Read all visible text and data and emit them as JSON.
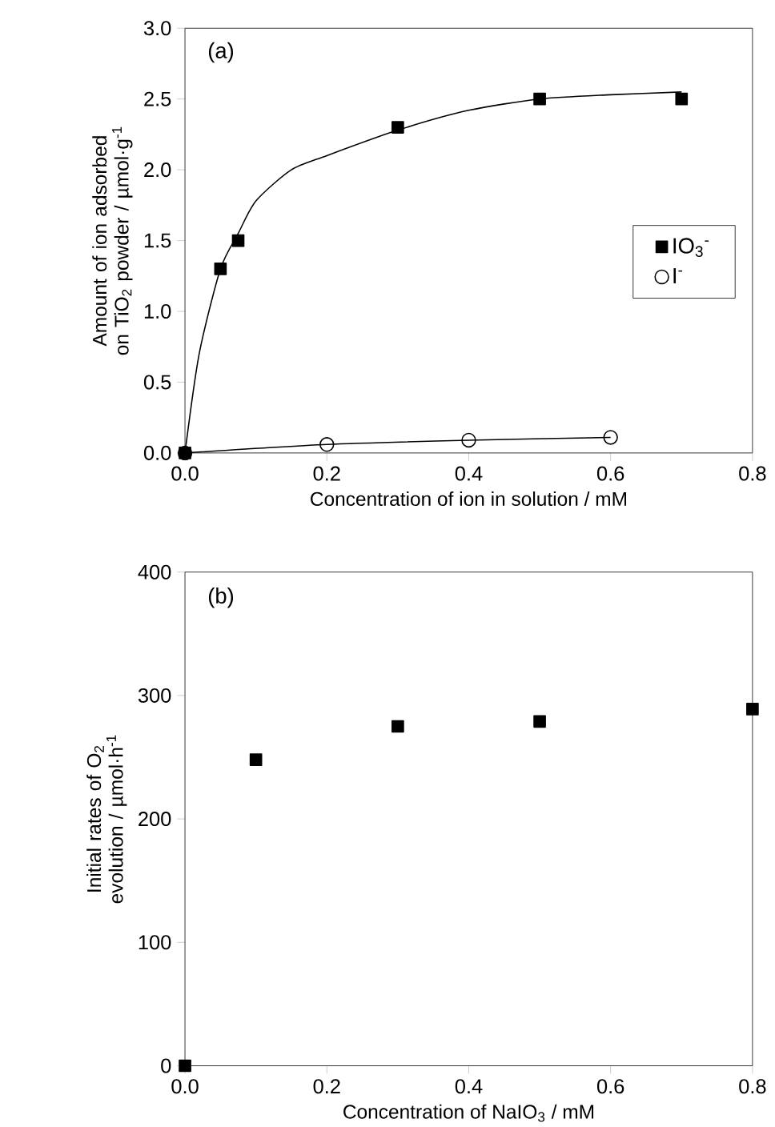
{
  "chart_data": [
    {
      "type": "scatter",
      "xlabel": "Concentration of ion in solution / mM",
      "ylabel": "Amount of ion adsorbed on TiO$_{2}$ powder / µmol·g$^{-1}$",
      "annotations": [
        "(a)"
      ],
      "xlim": [
        0,
        0.8
      ],
      "ylim": [
        0,
        3
      ],
      "xticks": [
        {
          "value": 0,
          "label": "0.0"
        },
        {
          "value": 0.2,
          "label": "0.2"
        },
        {
          "value": 0.4,
          "label": "0.4"
        },
        {
          "value": 0.6,
          "label": "0.6"
        },
        {
          "value": 0.8,
          "label": "0.8"
        }
      ],
      "yticks": [
        {
          "value": 0,
          "label": "0.0"
        },
        {
          "value": 0.5,
          "label": "0.5"
        },
        {
          "value": 1,
          "label": "1.0"
        },
        {
          "value": 1.5,
          "label": "1.5"
        },
        {
          "value": 2,
          "label": "2.0"
        },
        {
          "value": 2.5,
          "label": "2.5"
        },
        {
          "value": 3,
          "label": "3.0"
        }
      ],
      "legend": "right",
      "series": [
        {
          "type": "line",
          "color": "#000000",
          "marker": "none",
          "x": [
            0,
            0.02,
            0.05,
            0.075,
            0.1,
            0.15,
            0.2,
            0.3,
            0.4,
            0.5,
            0.6,
            0.7
          ],
          "values": [
            0,
            0.7,
            1.3,
            1.55,
            1.78,
            2.0,
            2.1,
            2.28,
            2.42,
            2.5,
            2.53,
            2.55
          ]
        },
        {
          "type": "line",
          "color": "#000000",
          "marker": "none",
          "x": [
            0,
            0.2,
            0.4,
            0.6
          ],
          "values": [
            0,
            0.06,
            0.09,
            0.11
          ]
        },
        {
          "name": "IO$_{3}$$^{-}$",
          "color": "#000000",
          "marker": "square",
          "x": [
            0,
            0.05,
            0.075,
            0.3,
            0.5,
            0.7
          ],
          "values": [
            0,
            1.3,
            1.5,
            2.3,
            2.5,
            2.5
          ]
        },
        {
          "name": "I$^{-}$",
          "color": "#000000",
          "marker": "circle",
          "x": [
            0,
            0.2,
            0.4,
            0.6
          ],
          "values": [
            0,
            0.06,
            0.09,
            0.11
          ]
        }
      ]
    },
    {
      "type": "scatter",
      "xlabel": "Concentration of NaIO$_{3}$ / mM",
      "ylabel": "Initial rates of O$_{2}$ evolution / µmol·h$^{-1}$",
      "annotations": [
        "(b)"
      ],
      "xlim": [
        0,
        0.8
      ],
      "ylim": [
        0,
        400
      ],
      "xticks": [
        {
          "value": 0,
          "label": "0.0"
        },
        {
          "value": 0.2,
          "label": "0.2"
        },
        {
          "value": 0.4,
          "label": "0.4"
        },
        {
          "value": 0.6,
          "label": "0.6"
        },
        {
          "value": 0.8,
          "label": "0.8"
        }
      ],
      "yticks": [
        0,
        100,
        200,
        300,
        400
      ],
      "series": [
        {
          "color": "#000000",
          "marker": "square",
          "x": [
            0,
            0.1,
            0.3,
            0.5,
            0.8
          ],
          "values": [
            0,
            248,
            275,
            279,
            289
          ]
        }
      ]
    }
  ]
}
